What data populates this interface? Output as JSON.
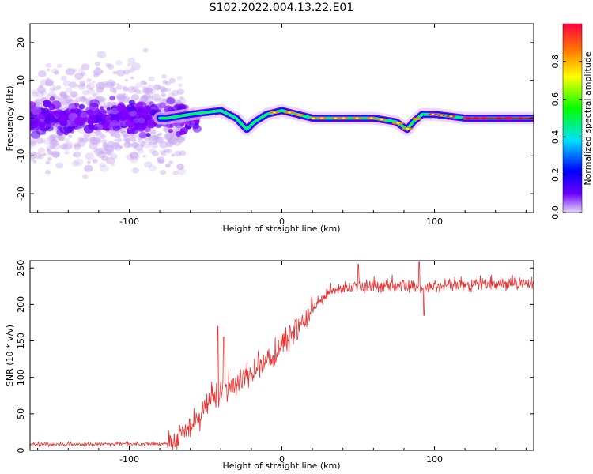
{
  "title": "S102.2022.004.13.22.E01",
  "chart_data": [
    {
      "type": "heatmap",
      "xlabel": "Height of straight line (km)",
      "ylabel": "Frequency (Hz)",
      "xlim": [
        -165,
        165
      ],
      "ylim": [
        -25,
        25
      ],
      "xticks": [
        -100,
        0,
        100
      ],
      "yticks": [
        -20,
        -10,
        0,
        10,
        20
      ],
      "colorbar": {
        "label": "Normalized spectral amplitude",
        "range": [
          0,
          1
        ],
        "ticks": [
          "0.0",
          "0.2",
          "0.4",
          "0.6",
          "0.8"
        ],
        "colors": [
          "#e8d8f8",
          "#6a00ff",
          "#0000ff",
          "#00e0ff",
          "#00ff00",
          "#ffff00",
          "#ff8000",
          "#ff0040"
        ]
      },
      "ridge": {
        "x": [
          -165,
          -75,
          -60,
          -40,
          -30,
          -23,
          -18,
          -10,
          0,
          10,
          20,
          40,
          60,
          75,
          82,
          86,
          92,
          100,
          120,
          165
        ],
        "y": [
          0,
          0,
          1,
          2,
          0,
          -3,
          -1,
          1,
          2,
          1,
          0,
          0,
          0,
          -1,
          -3,
          -1,
          1,
          1,
          0,
          0
        ],
        "noise_region": [
          -165,
          -75
        ]
      }
    },
    {
      "type": "line",
      "xlabel": "Height of straight line (km)",
      "ylabel": "SNR (10 * v/v)",
      "xlim": [
        -165,
        165
      ],
      "ylim": [
        0,
        260
      ],
      "xticks": [
        -100,
        0,
        100
      ],
      "yticks": [
        0,
        50,
        100,
        150,
        200,
        250
      ],
      "color": "#e83030",
      "trend": {
        "x": [
          -165,
          -75,
          -65,
          -55,
          -45,
          -35,
          -25,
          -15,
          -5,
          5,
          15,
          25,
          35,
          50,
          80,
          100,
          130,
          165
        ],
        "y": [
          8,
          9,
          20,
          45,
          70,
          90,
          100,
          115,
          130,
          155,
          180,
          205,
          220,
          225,
          225,
          225,
          228,
          230
        ]
      },
      "spikes": [
        {
          "x": -42,
          "y": 170
        },
        {
          "x": -38,
          "y": 155
        },
        {
          "x": 50,
          "y": 255
        },
        {
          "x": 90,
          "y": 258
        },
        {
          "x": 93,
          "y": 185
        }
      ]
    }
  ]
}
